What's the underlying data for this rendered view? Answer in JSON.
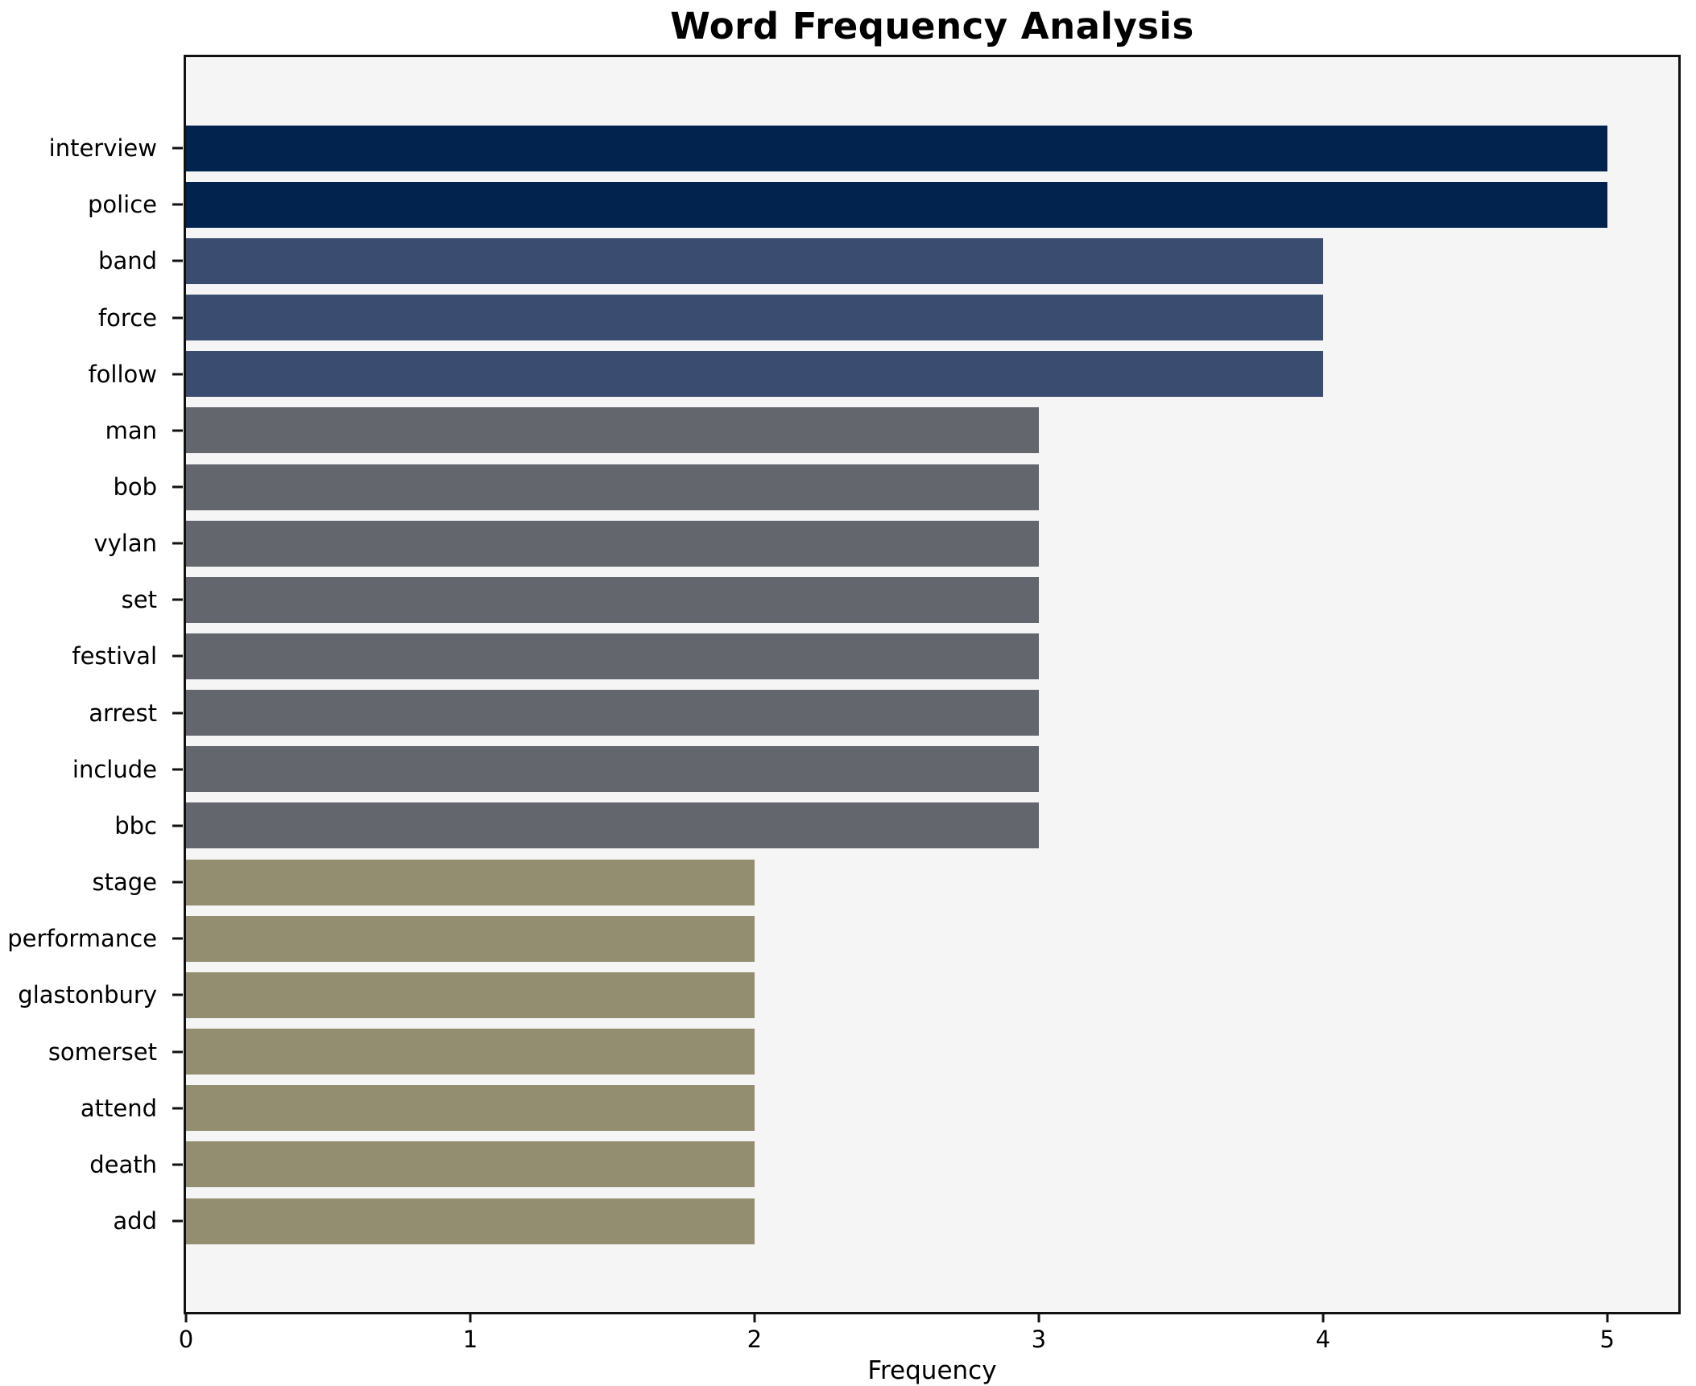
{
  "chart_data": {
    "type": "bar",
    "orientation": "horizontal",
    "title": "Word Frequency Analysis",
    "xlabel": "Frequency",
    "ylabel": "",
    "categories": [
      "interview",
      "police",
      "band",
      "force",
      "follow",
      "man",
      "bob",
      "vylan",
      "set",
      "festival",
      "arrest",
      "include",
      "bbc",
      "stage",
      "performance",
      "glastonbury",
      "somerset",
      "attend",
      "death",
      "add"
    ],
    "values": [
      5,
      5,
      4,
      4,
      4,
      3,
      3,
      3,
      3,
      3,
      3,
      3,
      3,
      2,
      2,
      2,
      2,
      2,
      2,
      2
    ],
    "xticks": [
      "0",
      "1",
      "2",
      "3",
      "4",
      "5"
    ],
    "xlim": [
      0,
      5.25
    ],
    "grid": false,
    "legend_position": "none",
    "bar_height_ratio": 0.8,
    "value_colors": {
      "5": "#02234e",
      "4": "#3a4c6f",
      "3": "#64666e",
      "2": "#948e71"
    },
    "plot_background": "#f5f5f6",
    "figure_background": "#ffffff",
    "spine_color": "#111111"
  }
}
